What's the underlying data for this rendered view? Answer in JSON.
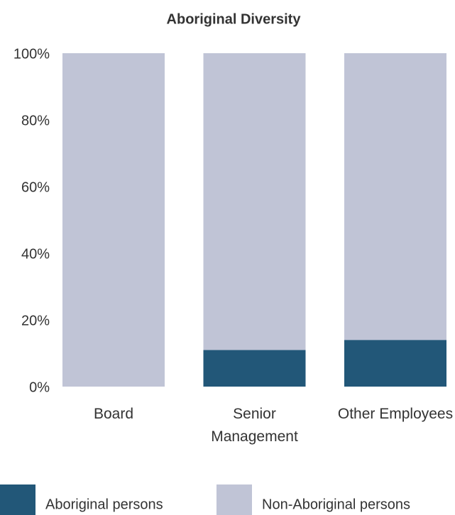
{
  "chart_data": {
    "type": "stacked_bar",
    "title": "Aboriginal Diversity",
    "categories": [
      "Board",
      "Senior Management",
      "Other Employees"
    ],
    "series": [
      {
        "name": "Aboriginal persons",
        "color": "#225778",
        "values": [
          0,
          11,
          14
        ]
      },
      {
        "name": "Non-Aboriginal persons",
        "color": "#c0c4d6",
        "values": [
          100,
          89,
          86
        ]
      }
    ],
    "ylim": [
      0,
      100
    ],
    "yticks": [
      {
        "value": 0,
        "label": "0%"
      },
      {
        "value": 20,
        "label": "20%"
      },
      {
        "value": 40,
        "label": "40%"
      },
      {
        "value": 60,
        "label": "60%"
      },
      {
        "value": 80,
        "label": "80%"
      },
      {
        "value": 100,
        "label": "100%"
      }
    ],
    "grid": false,
    "legend": "bottom"
  }
}
